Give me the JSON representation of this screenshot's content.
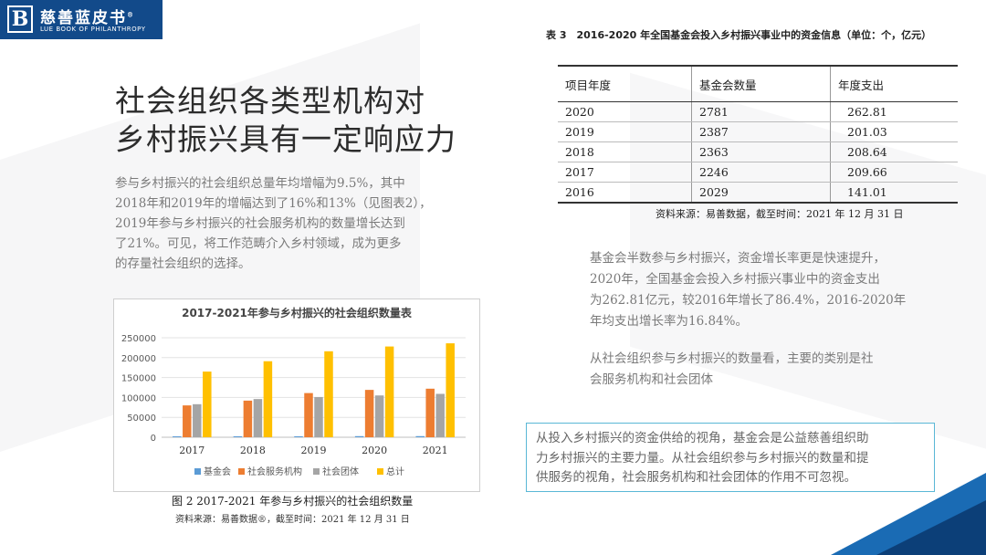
{
  "logo": {
    "mark": "B",
    "name_cn": "慈善蓝皮书",
    "name_en": "LUE BOOK OF PHILANTHROPY",
    "reg": "®"
  },
  "headline": {
    "line1": "社会组织各类型机构对",
    "line2": "乡村振兴具有一定响应力"
  },
  "intro_paragraph": {
    "lines": [
      "参与乡村振兴的社会组织总量年均增幅为9.5%，其中",
      "2018年和2019年的增幅达到了16%和13%（见图表2），",
      "2019年参与乡村振兴的社会服务机构的数量增长达到",
      "了21%。可见，将工作范畴介入乡村领域，成为更多",
      "的存量社会组织的选择。"
    ]
  },
  "figure": {
    "caption": "图 2  2017-2021 年参与乡村振兴的社会组织数量",
    "source": "资料来源：易善数据®，截至时间：2021 年 12 月 31 日"
  },
  "chart_data": {
    "type": "bar",
    "title": "2017-2021年参与乡村振兴的社会组织数量表",
    "categories": [
      "2017",
      "2018",
      "2019",
      "2020",
      "2021"
    ],
    "ylim": [
      0,
      250000
    ],
    "yticks": [
      "0",
      "50000",
      "100000",
      "150000",
      "200000",
      "250000"
    ],
    "grid": true,
    "legend_position": "bottom",
    "series": [
      {
        "name": "基金会",
        "color": "#5b9bd5",
        "values": [
          2246,
          2363,
          2387,
          2781,
          2800
        ]
      },
      {
        "name": "社会服务机构",
        "color": "#ed7d31",
        "values": [
          80000,
          92000,
          111000,
          119000,
          122000
        ]
      },
      {
        "name": "社会团体",
        "color": "#a5a5a5",
        "values": [
          83000,
          96000,
          101000,
          105000,
          109000
        ]
      },
      {
        "name": "总计",
        "color": "#ffc000",
        "values": [
          165000,
          191000,
          216000,
          228000,
          236000
        ]
      }
    ]
  },
  "table": {
    "title": "表 3　2016-2020 年全国基金会投入乡村振兴事业中的资金信息（单位：个，亿元）",
    "headers": [
      "项目年度",
      "基金会数量",
      "年度支出"
    ],
    "rows": [
      [
        "2020",
        "2781",
        "262.81"
      ],
      [
        "2019",
        "2387",
        "201.03"
      ],
      [
        "2018",
        "2363",
        "208.64"
      ],
      [
        "2017",
        "2246",
        "209.66"
      ],
      [
        "2016",
        "2029",
        "141.01"
      ]
    ],
    "source": "资料来源：易善数据，截至时间：2021 年 12 月 31 日"
  },
  "foundation_paragraph": {
    "lines": [
      "基金会半数参与乡村振兴，资金增长率更是快速提升，",
      "2020年，全国基金会投入乡村振兴事业中的资金支出",
      "为262.81亿元，较2016年增长了86.4%，2016-2020年",
      "年均支出增长率为16.84%。"
    ]
  },
  "types_paragraph": {
    "lines": [
      "从社会组织参与乡村振兴的数量看，主要的类别是社",
      "会服务机构和社会团体"
    ]
  },
  "highlight_box": {
    "lines": [
      "从投入乡村振兴的资金供给的视角，基金会是公益慈善组织助",
      "力乡村振兴的主要力量。从社会组织参与乡村振兴的数量和提",
      "供服务的视角，社会服务机构和社会团体的作用不可忽视。"
    ]
  }
}
